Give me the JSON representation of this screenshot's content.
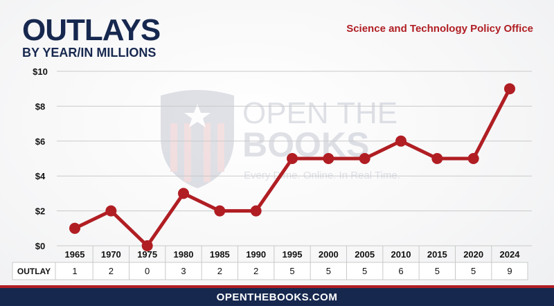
{
  "header": {
    "title": "OUTLAYS",
    "subtitle": "BY YEAR/IN MILLIONS",
    "agency": "Science and Technology Policy Office"
  },
  "watermark": {
    "line1": "OPEN THE",
    "line2": "BOOKS",
    "tagline": "Every Dime. Online. In Real Time."
  },
  "footer": {
    "url": "OPENTHEBOOKS.COM"
  },
  "colors": {
    "line": "#b01e23",
    "navy": "#17284f",
    "grid": "#c9c9c9",
    "accent": "#b01e23"
  },
  "chart_data": {
    "type": "line",
    "categories": [
      "1965",
      "1970",
      "1975",
      "1980",
      "1985",
      "1990",
      "1995",
      "2000",
      "2005",
      "2010",
      "2015",
      "2020",
      "2024"
    ],
    "series": [
      {
        "name": "OUTLAY",
        "values": [
          1,
          2,
          0,
          3,
          2,
          2,
          5,
          5,
          5,
          6,
          5,
          5,
          9
        ]
      }
    ],
    "value_labels": [
      "1",
      "2",
      "0",
      "3",
      "2",
      "2",
      "5",
      "5",
      "5",
      "6",
      "5",
      "5",
      "9"
    ],
    "table_row_label": "OUTLAY",
    "ylim": [
      0,
      10
    ],
    "y_ticks": [
      0,
      2,
      4,
      6,
      8,
      10
    ],
    "y_tick_labels": [
      "$0",
      "$2",
      "$4",
      "$6",
      "$8",
      "$10"
    ],
    "grid": true
  }
}
